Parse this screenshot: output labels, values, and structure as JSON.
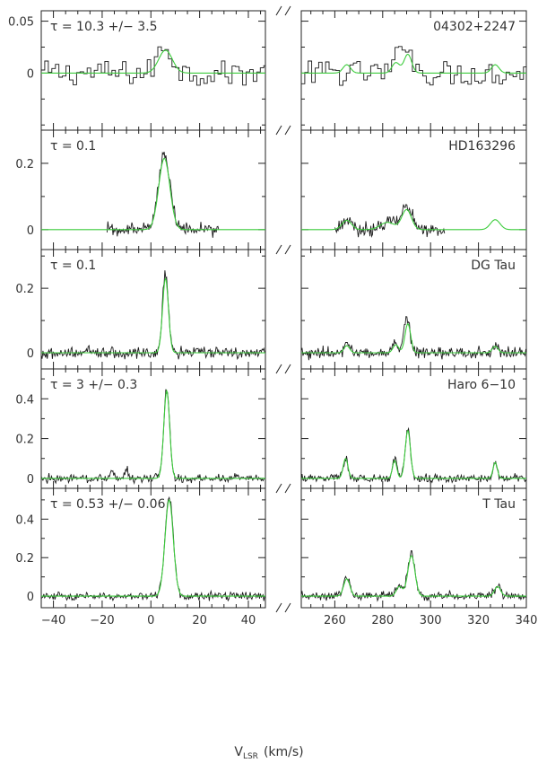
{
  "chart_data": {
    "type": "line",
    "xlabel": "V",
    "xlabel_sub": "LSR",
    "xlabel_unit": "(km/s)",
    "xlim_left": [
      -45,
      47
    ],
    "xlim_right": [
      246,
      340
    ],
    "xticks_left": [
      -40,
      -20,
      0,
      20,
      40
    ],
    "xticks_right": [
      260,
      280,
      300,
      320,
      340
    ],
    "xticklabels_left": [
      "−40",
      "−20",
      "0",
      "20",
      "40"
    ],
    "xticklabels_right": [
      "260",
      "280",
      "300",
      "320",
      "340"
    ],
    "axis_break": "//",
    "colors": {
      "observed": "#1a1a1a",
      "model": "#3ccc3c"
    },
    "legend": "none",
    "grid": false,
    "panels": [
      {
        "source": "04302+2247",
        "tau_label": "τ = 10.3 +/− 3.5",
        "ylim": [
          -0.055,
          0.06
        ],
        "yticks": [
          0,
          0.05
        ],
        "yticklabels": [
          "0",
          "0.05"
        ],
        "binned": true,
        "data_range_left": [
          -45,
          47
        ],
        "data_range_right": [
          246,
          340
        ],
        "noise": 0.012,
        "obs_lines": [
          {
            "v": 6.0,
            "amp": 0.026,
            "sigma": 3.0
          },
          {
            "v": 290.0,
            "amp": 0.03,
            "sigma": 2.0
          },
          {
            "v": 287.0,
            "amp": 0.014,
            "sigma": 1.5
          }
        ],
        "model_lines": [
          {
            "v": 6.0,
            "amp": 0.022,
            "sigma": 2.8
          },
          {
            "v": 265.0,
            "amp": 0.008,
            "sigma": 1.6
          },
          {
            "v": 285.5,
            "amp": 0.01,
            "sigma": 1.6
          },
          {
            "v": 290.5,
            "amp": 0.018,
            "sigma": 1.6
          },
          {
            "v": 327.0,
            "amp": 0.008,
            "sigma": 1.6
          }
        ]
      },
      {
        "source": "HD163296",
        "tau_label": "τ = 0.1",
        "ylim": [
          -0.06,
          0.3
        ],
        "yticks": [
          0,
          0.2
        ],
        "yticklabels": [
          "0",
          "0.2"
        ],
        "binned": false,
        "data_range_left": [
          -18,
          28
        ],
        "data_range_right": [
          260,
          306
        ],
        "noise": 0.016,
        "obs_lines": [
          {
            "v": 5.5,
            "amp": 0.225,
            "sigma": 2.4
          },
          {
            "v": 290.0,
            "amp": 0.065,
            "sigma": 2.5
          },
          {
            "v": 265.0,
            "amp": 0.03,
            "sigma": 2.0
          },
          {
            "v": 282.0,
            "amp": 0.025,
            "sigma": 3.0
          }
        ],
        "model_lines": [
          {
            "v": 5.5,
            "amp": 0.215,
            "sigma": 2.3
          },
          {
            "v": 265.0,
            "amp": 0.028,
            "sigma": 2.0
          },
          {
            "v": 282.0,
            "amp": 0.022,
            "sigma": 3.0
          },
          {
            "v": 290.0,
            "amp": 0.06,
            "sigma": 2.0
          },
          {
            "v": 327.0,
            "amp": 0.03,
            "sigma": 2.0
          }
        ]
      },
      {
        "source": "DG Tau",
        "tau_label": "τ = 0.1",
        "ylim": [
          -0.05,
          0.32
        ],
        "yticks": [
          0,
          0.2
        ],
        "yticklabels": [
          "0",
          "0.2"
        ],
        "binned": false,
        "data_range_left": [
          -45,
          47
        ],
        "data_range_right": [
          246,
          340
        ],
        "noise": 0.014,
        "obs_lines": [
          {
            "v": 6.0,
            "amp": 0.25,
            "sigma": 1.2
          },
          {
            "v": 290.0,
            "amp": 0.11,
            "sigma": 1.3
          },
          {
            "v": 265.0,
            "amp": 0.025,
            "sigma": 1.2
          },
          {
            "v": 285.0,
            "amp": 0.03,
            "sigma": 1.2
          },
          {
            "v": 327.0,
            "amp": 0.02,
            "sigma": 1.2
          }
        ],
        "model_lines": [
          {
            "v": 6.0,
            "amp": 0.23,
            "sigma": 1.2
          },
          {
            "v": 265.0,
            "amp": 0.022,
            "sigma": 1.2
          },
          {
            "v": 285.5,
            "amp": 0.025,
            "sigma": 1.2
          },
          {
            "v": 290.5,
            "amp": 0.09,
            "sigma": 1.2
          },
          {
            "v": 327.0,
            "amp": 0.02,
            "sigma": 1.2
          }
        ]
      },
      {
        "source": "Haro 6−10",
        "tau_label": "τ = 3 +/− 0.3",
        "ylim": [
          -0.05,
          0.55
        ],
        "yticks": [
          0,
          0.2,
          0.4
        ],
        "yticklabels": [
          "0",
          "0.2",
          "0.4"
        ],
        "binned": false,
        "data_range_left": [
          -45,
          47
        ],
        "data_range_right": [
          246,
          340
        ],
        "noise": 0.016,
        "obs_lines": [
          {
            "v": 6.5,
            "amp": 0.45,
            "sigma": 1.2
          },
          {
            "v": 290.5,
            "amp": 0.25,
            "sigma": 1.1
          },
          {
            "v": 264.5,
            "amp": 0.1,
            "sigma": 1.0
          },
          {
            "v": 285.0,
            "amp": 0.1,
            "sigma": 0.9
          },
          {
            "v": 327.0,
            "amp": 0.08,
            "sigma": 0.9
          },
          {
            "v": -16.0,
            "amp": 0.05,
            "sigma": 0.6
          },
          {
            "v": -10.0,
            "amp": 0.05,
            "sigma": 0.6
          }
        ],
        "model_lines": [
          {
            "v": 6.5,
            "amp": 0.44,
            "sigma": 1.2
          },
          {
            "v": 264.5,
            "amp": 0.1,
            "sigma": 1.0
          },
          {
            "v": 285.0,
            "amp": 0.09,
            "sigma": 0.9
          },
          {
            "v": 290.5,
            "amp": 0.24,
            "sigma": 1.1
          },
          {
            "v": 327.0,
            "amp": 0.08,
            "sigma": 0.9
          }
        ]
      },
      {
        "source": "T Tau",
        "tau_label": "τ = 0.53 +/− 0.06",
        "ylim": [
          -0.06,
          0.56
        ],
        "yticks": [
          0,
          0.2,
          0.4
        ],
        "yticklabels": [
          "0",
          "0.2",
          "0.4"
        ],
        "binned": false,
        "data_range_left": [
          -45,
          47
        ],
        "data_range_right": [
          246,
          340
        ],
        "noise": 0.016,
        "obs_lines": [
          {
            "v": 7.5,
            "amp": 0.52,
            "sigma": 1.7
          },
          {
            "v": 292.0,
            "amp": 0.22,
            "sigma": 1.5
          },
          {
            "v": 265.0,
            "amp": 0.1,
            "sigma": 1.3
          },
          {
            "v": 287.0,
            "amp": 0.06,
            "sigma": 1.3
          },
          {
            "v": 328.0,
            "amp": 0.05,
            "sigma": 1.3
          }
        ],
        "model_lines": [
          {
            "v": 7.5,
            "amp": 0.5,
            "sigma": 1.7
          },
          {
            "v": 265.0,
            "amp": 0.09,
            "sigma": 1.3
          },
          {
            "v": 287.0,
            "amp": 0.05,
            "sigma": 1.3
          },
          {
            "v": 292.0,
            "amp": 0.21,
            "sigma": 1.5
          },
          {
            "v": 328.0,
            "amp": 0.05,
            "sigma": 1.3
          }
        ]
      }
    ]
  }
}
